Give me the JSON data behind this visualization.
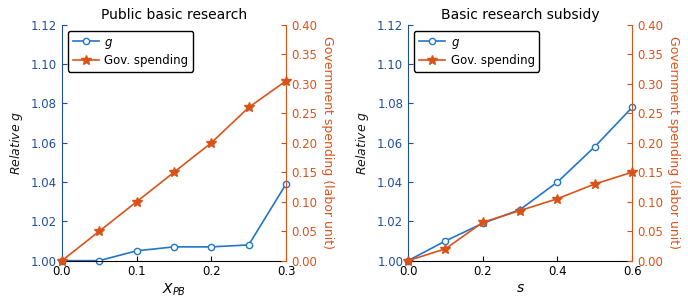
{
  "left": {
    "title": "Public basic research",
    "xlabel": "$X_{PB}$",
    "ylabel_left": "Relative $g$",
    "ylabel_right": "Government spending (labor unit)",
    "g_x": [
      0,
      0.05,
      0.1,
      0.15,
      0.2,
      0.25,
      0.3
    ],
    "g_y": [
      1.0,
      1.0,
      1.005,
      1.007,
      1.007,
      1.008,
      1.039
    ],
    "gov_x": [
      0,
      0.05,
      0.1,
      0.15,
      0.2,
      0.25,
      0.3
    ],
    "gov_y": [
      0.0,
      0.05,
      0.1,
      0.15,
      0.2,
      0.26,
      0.305
    ],
    "xlim": [
      0,
      0.3
    ],
    "ylim_left": [
      1.0,
      1.12
    ],
    "ylim_right": [
      0,
      0.4
    ],
    "xticks": [
      0,
      0.1,
      0.2,
      0.3
    ],
    "yticks_left": [
      1.0,
      1.02,
      1.04,
      1.06,
      1.08,
      1.1,
      1.12
    ],
    "yticks_right": [
      0,
      0.05,
      0.1,
      0.15,
      0.2,
      0.25,
      0.3,
      0.35,
      0.4
    ]
  },
  "right": {
    "title": "Basic research subsidy",
    "xlabel": "$s$",
    "ylabel_left": "Relative $g$",
    "ylabel_right": "Government spending (labor unit)",
    "g_x": [
      0,
      0.1,
      0.2,
      0.3,
      0.4,
      0.5,
      0.6
    ],
    "g_y": [
      1.0,
      1.01,
      1.019,
      1.026,
      1.04,
      1.058,
      1.078
    ],
    "gov_x": [
      0,
      0.1,
      0.2,
      0.3,
      0.4,
      0.5,
      0.6
    ],
    "gov_y": [
      0.0,
      0.02,
      0.065,
      0.085,
      0.105,
      0.13,
      0.15
    ],
    "xlim": [
      0,
      0.6
    ],
    "ylim_left": [
      1.0,
      1.12
    ],
    "ylim_right": [
      0,
      0.4
    ],
    "xticks": [
      0,
      0.2,
      0.4,
      0.6
    ],
    "yticks_left": [
      1.0,
      1.02,
      1.04,
      1.06,
      1.08,
      1.1,
      1.12
    ],
    "yticks_right": [
      0,
      0.05,
      0.1,
      0.15,
      0.2,
      0.25,
      0.3,
      0.35,
      0.4
    ]
  },
  "color_blue": "#2176c7",
  "color_orange": "#d95319",
  "marker_blue": "o",
  "marker_orange": "*",
  "markersize_blue": 4.5,
  "markersize_orange": 7,
  "linewidth": 1.2,
  "title_fontsize": 10,
  "label_fontsize": 9,
  "tick_fontsize": 8.5,
  "legend_fontsize": 8.5
}
